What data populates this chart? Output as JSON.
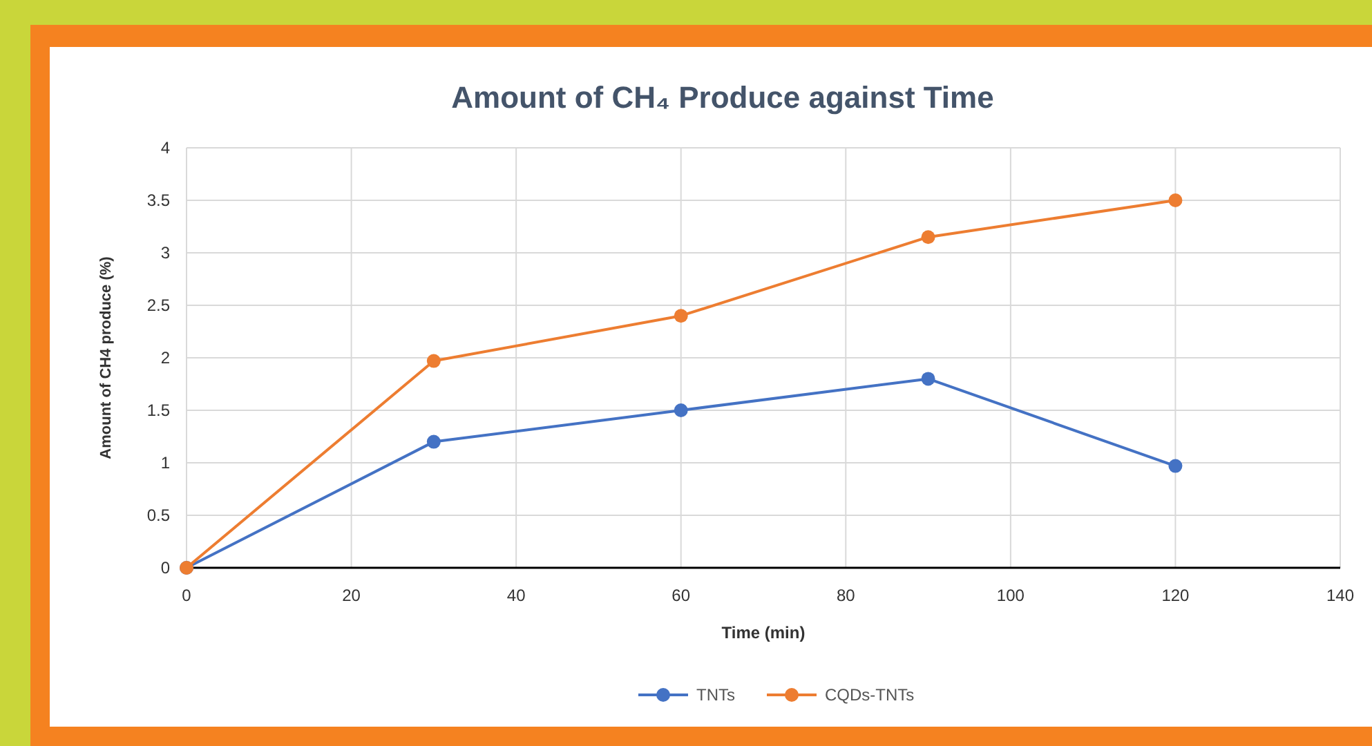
{
  "chart_data": {
    "type": "line",
    "title": "Amount of CH₄ Produce against Time",
    "xlabel": "Time (min)",
    "ylabel": "Amount of CH4 produce (%)",
    "x": [
      0,
      30,
      60,
      90,
      120
    ],
    "series": [
      {
        "name": "TNTs",
        "color": "#4472c4",
        "values": [
          0,
          1.2,
          1.5,
          1.8,
          0.97
        ]
      },
      {
        "name": "CQDs-TNTs",
        "color": "#ed7d31",
        "values": [
          0,
          1.97,
          2.4,
          3.15,
          3.5
        ]
      }
    ],
    "xlim": [
      0,
      140
    ],
    "xticks": [
      0,
      20,
      40,
      60,
      80,
      100,
      120,
      140
    ],
    "ylim": [
      0,
      4
    ],
    "yticks": [
      0,
      0.5,
      1,
      1.5,
      2,
      2.5,
      3,
      3.5,
      4
    ],
    "grid": true,
    "legend": "bottom",
    "marker": "circle",
    "line_style": "solid"
  }
}
